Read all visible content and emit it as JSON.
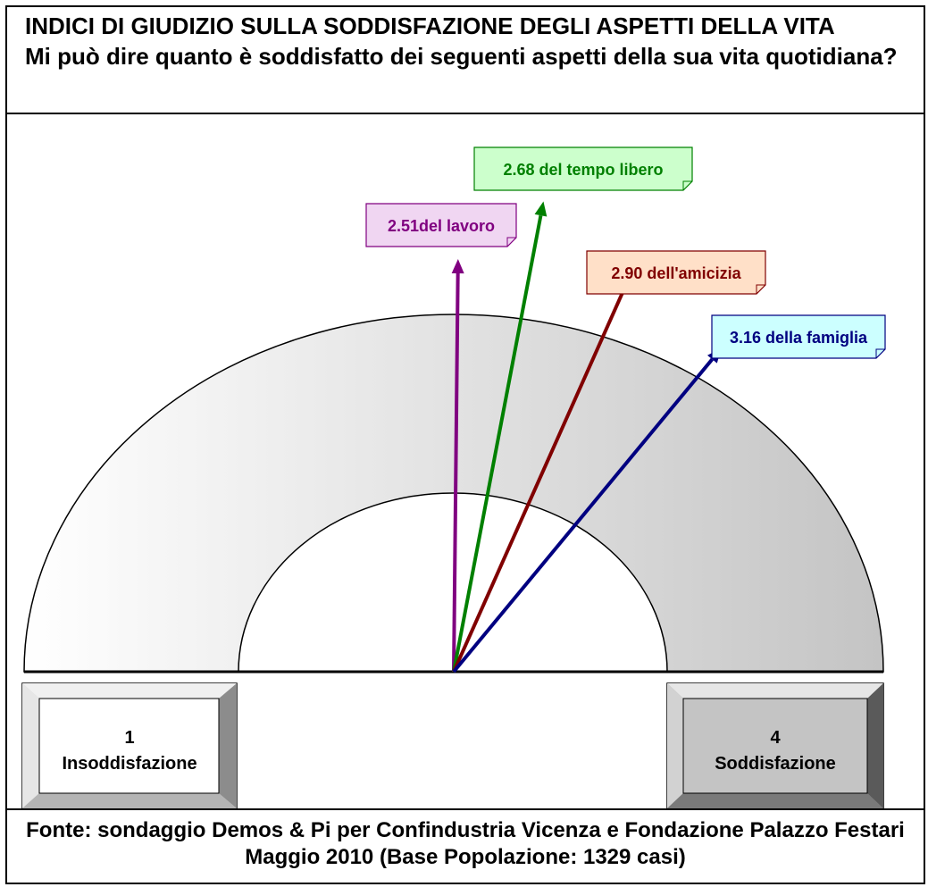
{
  "title": "INDICI DI GIUDIZIO SULLA SODDISFAZIONE DEGLI ASPETTI DELLA VITA",
  "subtitle": "Mi può dire quanto è soddisfatto dei seguenti aspetti della sua vita quotidiana?",
  "source": {
    "line1": "Fonte: sondaggio Demos & Pi per Confindustria Vicenza e Fondazione Palazzo Festari",
    "line2": "Maggio 2010 (Base Popolazione: 1329 casi)"
  },
  "chart_data": {
    "type": "gauge",
    "scale_min": 1,
    "scale_max": 4,
    "min_box": {
      "value": "1",
      "label": "Insoddisfazione"
    },
    "max_box": {
      "value": "4",
      "label": "Soddisfazione"
    },
    "series": [
      {
        "value": 2.51,
        "label": "2.51del lavoro",
        "color": "#800080",
        "box_fill": "#f0d6f2"
      },
      {
        "value": 2.68,
        "label": "2.68 del tempo libero",
        "color": "#008000",
        "box_fill": "#ccffcc"
      },
      {
        "value": 2.9,
        "label": "2.90 dell'amicizia",
        "color": "#800000",
        "box_fill": "#ffe0c8"
      },
      {
        "value": 3.16,
        "label": "3.16 della famiglia",
        "color": "#000080",
        "box_fill": "#ccffff"
      }
    ]
  }
}
